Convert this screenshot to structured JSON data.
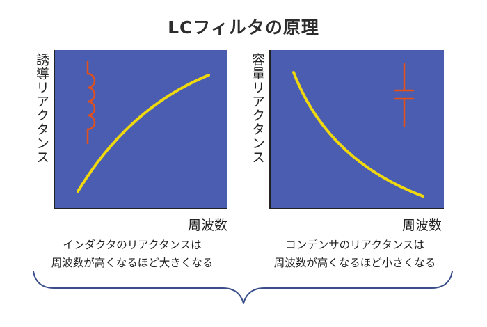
{
  "title": "LCフィルタの原理",
  "colors": {
    "panel_bg": "#4a5db0",
    "curve": "#f0d80f",
    "symbol": "#e4501b",
    "axis": "#222222",
    "brace": "#3a4f8a"
  },
  "panels": [
    {
      "ylabel": "誘導リアクタンス",
      "xlabel": "周波数",
      "caption": [
        "インダクタのリアクタンスは",
        "周波数が高くなるほど大きくなる"
      ],
      "symbol": "inductor-icon",
      "trend": "increasing"
    },
    {
      "ylabel": "容量リアクタンス",
      "xlabel": "周波数",
      "caption": [
        "コンデンサのリアクタンスは",
        "周波数が高くなるほど小さくなる"
      ],
      "symbol": "capacitor-icon",
      "trend": "decreasing"
    }
  ]
}
